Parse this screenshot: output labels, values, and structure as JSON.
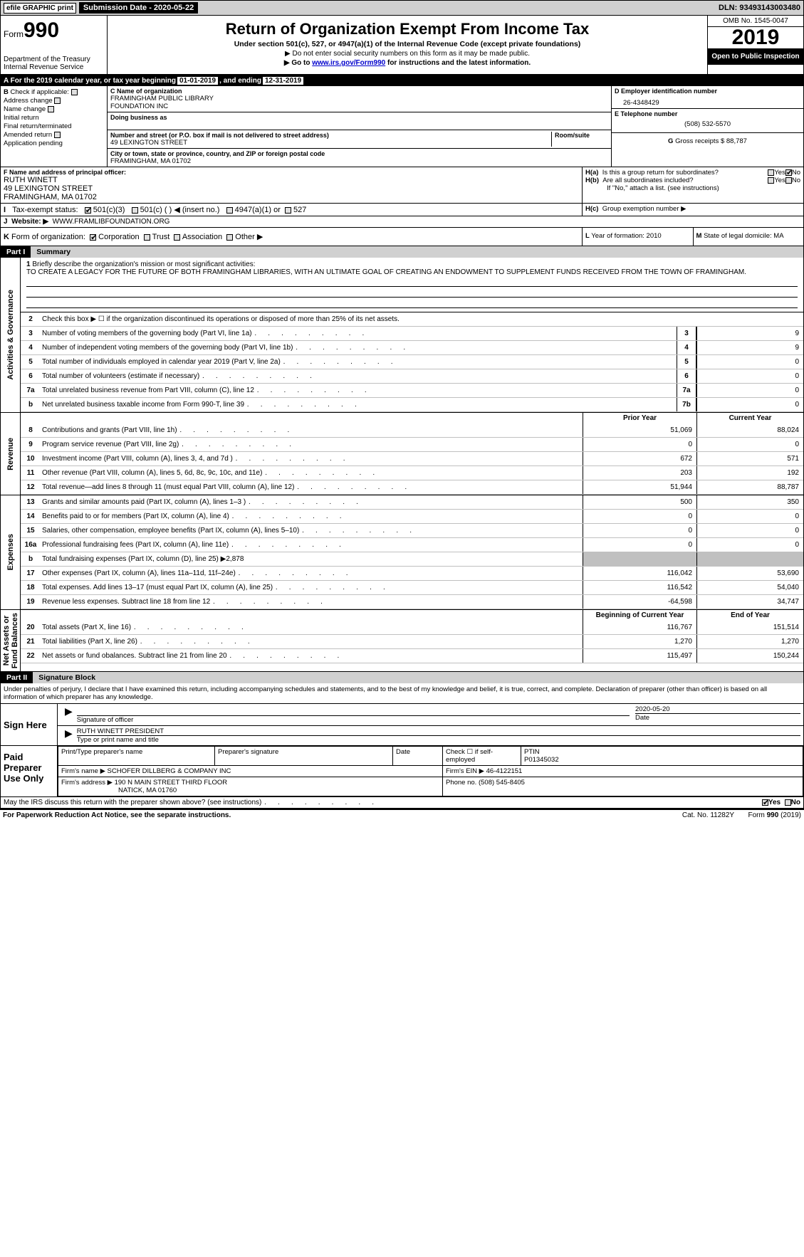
{
  "topbar": {
    "efile": "efile GRAPHIC print",
    "subm_label": "Submission Date - 2020-05-22",
    "dln": "DLN: 93493143003480"
  },
  "header": {
    "form_prefix": "Form",
    "form_num": "990",
    "dept": "Department of the Treasury",
    "irs": "Internal Revenue Service",
    "title": "Return of Organization Exempt From Income Tax",
    "sub": "Under section 501(c), 527, or 4947(a)(1) of the Internal Revenue Code (except private foundations)",
    "inst1": "▶ Do not enter social security numbers on this form as it may be made public.",
    "inst2_pre": "▶ Go to ",
    "inst2_link": "www.irs.gov/Form990",
    "inst2_post": " for instructions and the latest information.",
    "omb": "OMB No. 1545-0047",
    "year": "2019",
    "open": "Open to Public Inspection"
  },
  "row_a": {
    "prefix": "A   For the 2019 calendar year, or tax year beginning ",
    "begin": "01-01-2019",
    "mid": ", and ending ",
    "end": "12-31-2019"
  },
  "sec_b": {
    "label": "B",
    "chk_label": "Check if applicable:",
    "opts": [
      "Address change",
      "Name change",
      "Initial return",
      "Final return/terminated",
      "Amended return",
      "Application pending"
    ],
    "c_lbl": "C Name of organization",
    "c_name1": "FRAMINGHAM PUBLIC LIBRARY",
    "c_name2": "FOUNDATION INC",
    "dba_lbl": "Doing business as",
    "addr_lbl": "Number and street (or P.O. box if mail is not delivered to street address)",
    "room_lbl": "Room/suite",
    "addr": "49 LEXINGTON STREET",
    "city_lbl": "City or town, state or province, country, and ZIP or foreign postal code",
    "city": "FRAMINGHAM, MA  01702",
    "d_lbl": "D Employer identification number",
    "d_val": "26-4348429",
    "e_lbl": "E Telephone number",
    "e_val": "(508) 532-5570",
    "g_lbl": "G",
    "g_txt": "Gross receipts $",
    "g_val": "88,787"
  },
  "sec_f": {
    "f_lbl": "F  Name and address of principal officer:",
    "f_name": "RUTH WINETT",
    "f_addr1": "49 LEXINGTON STREET",
    "f_addr2": "FRAMINGHAM, MA  01702",
    "ha": "H(a)",
    "ha_txt": "Is this a group return for subordinates?",
    "yes": "Yes",
    "no": "No",
    "hb": "H(b)",
    "hb_txt": "Are all subordinates included?",
    "hb_note": "If \"No,\" attach a list. (see instructions)",
    "hc": "H(c)",
    "hc_txt": "Group exemption number ▶"
  },
  "sec_i": {
    "lbl": "I",
    "txt": "Tax-exempt status:",
    "o1": "501(c)(3)",
    "o2": "501(c) (  ) ◀ (insert no.)",
    "o3": "4947(a)(1) or",
    "o4": "527"
  },
  "sec_j": {
    "lbl": "J",
    "txt": "Website: ▶",
    "val": "WWW.FRAMLIBFOUNDATION.ORG"
  },
  "sec_k": {
    "lbl": "K",
    "txt": "Form of organization:",
    "o1": "Corporation",
    "o2": "Trust",
    "o3": "Association",
    "o4": "Other ▶",
    "l_lbl": "L",
    "l_txt": "Year of formation: 2010",
    "m_lbl": "M",
    "m_txt": "State of legal domicile: MA"
  },
  "parts": {
    "p1": "Part I",
    "p1_t": "Summary",
    "p2": "Part II",
    "p2_t": "Signature Block"
  },
  "summary": {
    "q1_lbl": "1",
    "q1_txt": "Briefly describe the organization's mission or most significant activities:",
    "q1_ans": "TO CREATE A LEGACY FOR THE FUTURE OF BOTH FRAMINGHAM LIBRARIES, WITH AN ULTIMATE GOAL OF CREATING AN ENDOWMENT TO SUPPLEMENT FUNDS RECEIVED FROM THE TOWN OF FRAMINGHAM.",
    "q2_lbl": "2",
    "q2_txt": "Check this box ▶ ☐ if the organization discontinued its operations or disposed of more than 25% of its net assets.",
    "vlabels": {
      "ag": "Activities & Governance",
      "rev": "Revenue",
      "exp": "Expenses",
      "na": "Net Assets or\nFund Balances"
    },
    "col_prior": "Prior Year",
    "col_curr": "Current Year",
    "col_beg": "Beginning of Current Year",
    "col_end": "End of Year",
    "lines_ag": [
      {
        "n": "3",
        "d": "Number of voting members of the governing body (Part VI, line 1a)",
        "box": "3",
        "v": "9"
      },
      {
        "n": "4",
        "d": "Number of independent voting members of the governing body (Part VI, line 1b)",
        "box": "4",
        "v": "9"
      },
      {
        "n": "5",
        "d": "Total number of individuals employed in calendar year 2019 (Part V, line 2a)",
        "box": "5",
        "v": "0"
      },
      {
        "n": "6",
        "d": "Total number of volunteers (estimate if necessary)",
        "box": "6",
        "v": "0"
      },
      {
        "n": "7a",
        "d": "Total unrelated business revenue from Part VIII, column (C), line 12",
        "box": "7a",
        "v": "0"
      },
      {
        "n": "b",
        "d": "Net unrelated business taxable income from Form 990-T, line 39",
        "box": "7b",
        "v": "0"
      }
    ],
    "lines_rev": [
      {
        "n": "8",
        "d": "Contributions and grants (Part VIII, line 1h)",
        "p": "51,069",
        "c": "88,024"
      },
      {
        "n": "9",
        "d": "Program service revenue (Part VIII, line 2g)",
        "p": "0",
        "c": "0"
      },
      {
        "n": "10",
        "d": "Investment income (Part VIII, column (A), lines 3, 4, and 7d )",
        "p": "672",
        "c": "571"
      },
      {
        "n": "11",
        "d": "Other revenue (Part VIII, column (A), lines 5, 6d, 8c, 9c, 10c, and 11e)",
        "p": "203",
        "c": "192"
      },
      {
        "n": "12",
        "d": "Total revenue—add lines 8 through 11 (must equal Part VIII, column (A), line 12)",
        "p": "51,944",
        "c": "88,787"
      }
    ],
    "lines_exp": [
      {
        "n": "13",
        "d": "Grants and similar amounts paid (Part IX, column (A), lines 1–3 )",
        "p": "500",
        "c": "350"
      },
      {
        "n": "14",
        "d": "Benefits paid to or for members (Part IX, column (A), line 4)",
        "p": "0",
        "c": "0"
      },
      {
        "n": "15",
        "d": "Salaries, other compensation, employee benefits (Part IX, column (A), lines 5–10)",
        "p": "0",
        "c": "0"
      },
      {
        "n": "16a",
        "d": "Professional fundraising fees (Part IX, column (A), line 11e)",
        "p": "0",
        "c": "0"
      },
      {
        "n": "b",
        "d": "Total fundraising expenses (Part IX, column (D), line 25) ▶2,878",
        "gray": true
      },
      {
        "n": "17",
        "d": "Other expenses (Part IX, column (A), lines 11a–11d, 11f–24e)",
        "p": "116,042",
        "c": "53,690"
      },
      {
        "n": "18",
        "d": "Total expenses. Add lines 13–17 (must equal Part IX, column (A), line 25)",
        "p": "116,542",
        "c": "54,040"
      },
      {
        "n": "19",
        "d": "Revenue less expenses. Subtract line 18 from line 12",
        "p": "-64,598",
        "c": "34,747"
      }
    ],
    "lines_na": [
      {
        "n": "20",
        "d": "Total assets (Part X, line 16)",
        "p": "116,767",
        "c": "151,514"
      },
      {
        "n": "21",
        "d": "Total liabilities (Part X, line 26)",
        "p": "1,270",
        "c": "1,270"
      },
      {
        "n": "22",
        "d": "Net assets or fund obalances. Subtract line 21 from line 20",
        "p": "115,497",
        "c": "150,244"
      }
    ]
  },
  "sig": {
    "perjury": "Under penalties of perjury, I declare that I have examined this return, including accompanying schedules and statements, and to the best of my knowledge and belief, it is true, correct, and complete. Declaration of preparer (other than officer) is based on all information of which preparer has any knowledge.",
    "sign_here": "Sign Here",
    "sig_officer": "Signature of officer",
    "date_lbl": "Date",
    "date_val": "2020-05-20",
    "name_title": "RUTH WINETT  PRESIDENT",
    "name_lbl": "Type or print name and title",
    "paid": "Paid Preparer Use Only",
    "pt_name_lbl": "Print/Type preparer's name",
    "pt_sig_lbl": "Preparer's signature",
    "pt_date_lbl": "Date",
    "pt_chk": "Check ☐ if self-employed",
    "ptin_lbl": "PTIN",
    "ptin_val": "P01345032",
    "firm_name_lbl": "Firm's name   ▶",
    "firm_name": "SCHOFER DILLBERG & COMPANY INC",
    "firm_ein_lbl": "Firm's EIN ▶",
    "firm_ein": "46-4122151",
    "firm_addr_lbl": "Firm's address ▶",
    "firm_addr1": "190 N MAIN STREET THIRD FLOOR",
    "firm_addr2": "NATICK, MA  01760",
    "phone_lbl": "Phone no.",
    "phone": "(508) 545-8405",
    "discuss": "May the IRS discuss this return with the preparer shown above? (see instructions)"
  },
  "footer": {
    "pra": "For Paperwork Reduction Act Notice, see the separate instructions.",
    "cat": "Cat. No. 11282Y",
    "form": "Form 990 (2019)"
  }
}
